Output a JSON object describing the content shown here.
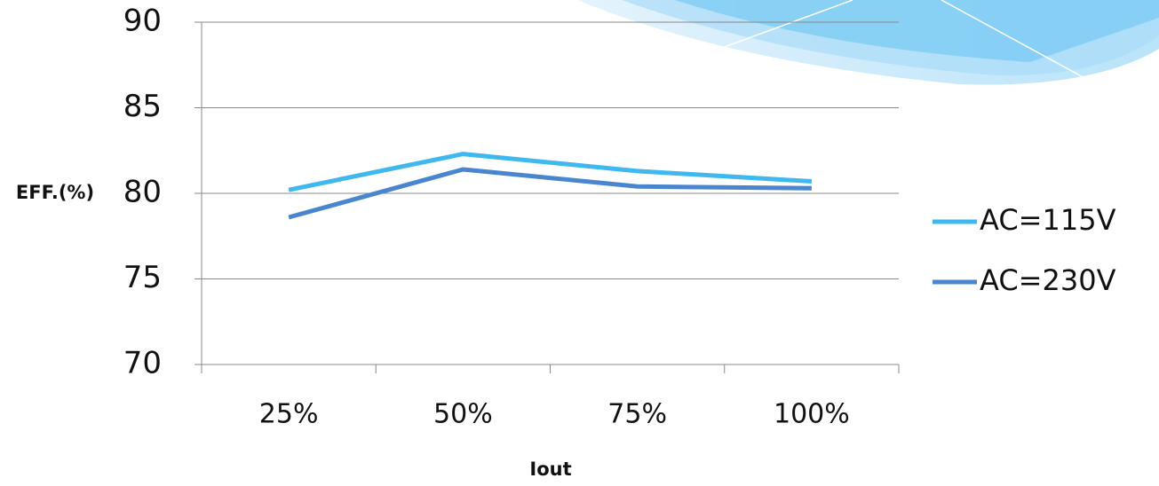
{
  "chart_data": {
    "type": "line",
    "categories": [
      "25%",
      "50%",
      "75%",
      "100%"
    ],
    "series": [
      {
        "name": "AC=115V",
        "color": "#3fb8f0",
        "values": [
          80.2,
          82.3,
          81.3,
          80.7
        ]
      },
      {
        "name": "AC=230V",
        "color": "#4a86d0",
        "values": [
          78.6,
          81.4,
          80.4,
          80.3
        ]
      }
    ],
    "ylim": [
      70,
      90
    ],
    "yticks": [
      70,
      75,
      80,
      85,
      90
    ],
    "grid": true,
    "y_label": "EFF.(%)",
    "x_label": "Iout",
    "legend": "right"
  }
}
